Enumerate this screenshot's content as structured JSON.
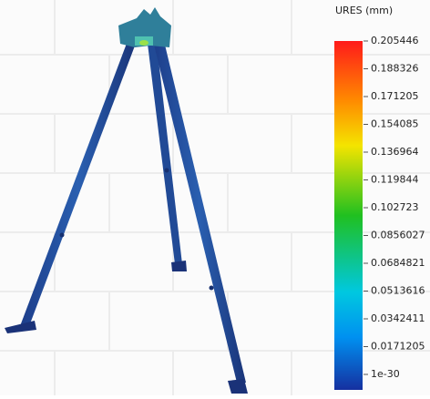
{
  "legend": {
    "title": "URES (mm)",
    "labels": [
      "0.205446",
      "0.188326",
      "0.171205",
      "0.154085",
      "0.136964",
      "0.119844",
      "0.102723",
      "0.0856027",
      "0.0684821",
      "0.0513616",
      "0.0342411",
      "0.0171205",
      "1e-30"
    ]
  }
}
